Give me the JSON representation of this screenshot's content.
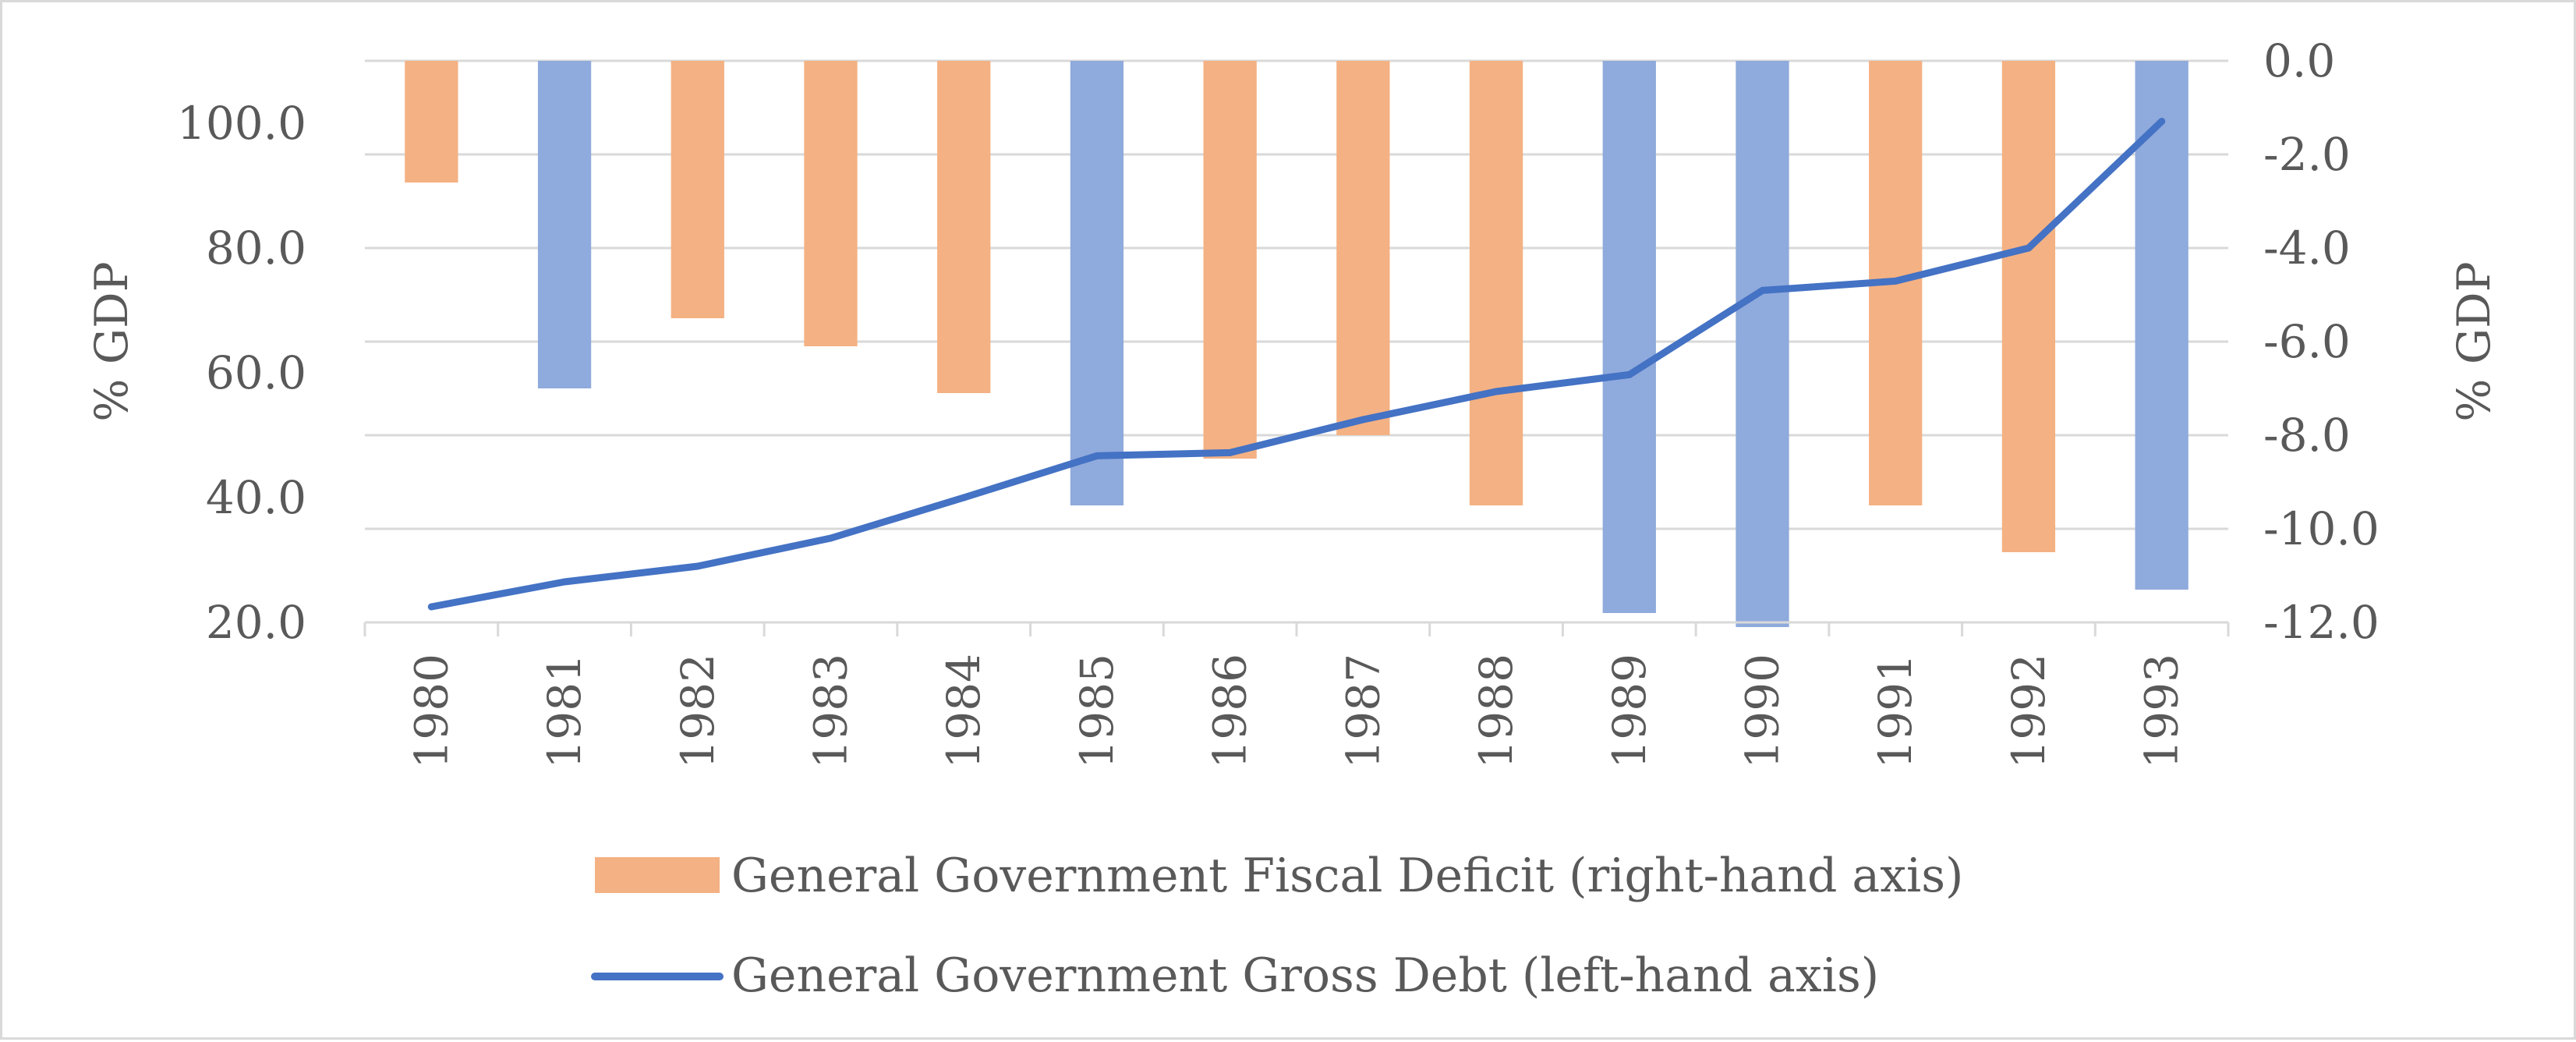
{
  "chart_data": {
    "type": "bar",
    "categories": [
      "1980",
      "1981",
      "1982",
      "1983",
      "1984",
      "1985",
      "1986",
      "1987",
      "1988",
      "1989",
      "1990",
      "1991",
      "1992",
      "1993"
    ],
    "series": [
      {
        "name": "General Government Fiscal Deficit (right-hand axis)",
        "kind": "bar",
        "axis": "right",
        "values": [
          -2.6,
          -7.0,
          -5.5,
          -6.1,
          -7.1,
          -9.5,
          -8.5,
          -8.0,
          -9.5,
          -11.8,
          -12.1,
          -9.5,
          -10.5,
          -11.3
        ]
      },
      {
        "name": "General Government Gross Debt (left-hand axis)",
        "kind": "line",
        "axis": "left",
        "values": [
          22.5,
          26.5,
          29.0,
          33.5,
          40.0,
          46.7,
          47.2,
          52.5,
          57.0,
          59.7,
          73.2,
          74.7,
          80.0,
          100.3
        ]
      }
    ],
    "highlighted_bars": [
      "1981",
      "1985",
      "1989",
      "1990",
      "1993"
    ],
    "colors": {
      "bar": "#f4b183",
      "bar_highlight": "#8faadc",
      "line": "#4472c4",
      "grid": "#d9d9d9",
      "text": "#595959"
    },
    "left_axis": {
      "label": "% GDP",
      "min": 20,
      "max": 110,
      "ticks": [
        20,
        40,
        60,
        80,
        100
      ],
      "tick_labels": [
        "20.0",
        "40.0",
        "60.0",
        "80.0",
        "100.0"
      ]
    },
    "right_axis": {
      "label": "% GDP",
      "min": -12,
      "max": 0,
      "ticks": [
        0,
        -2,
        -4,
        -6,
        -8,
        -10,
        -12
      ],
      "tick_labels": [
        "0.0",
        "-2.0",
        "-4.0",
        "-6.0",
        "-8.0",
        "-10.0",
        "-12.0"
      ]
    },
    "legend": [
      {
        "label": "General Government Fiscal Deficit (right-hand axis)",
        "kind": "bar"
      },
      {
        "label": "General Government Gross Debt (left-hand axis)",
        "kind": "line"
      }
    ],
    "legend_position": "bottom",
    "grid": true
  }
}
